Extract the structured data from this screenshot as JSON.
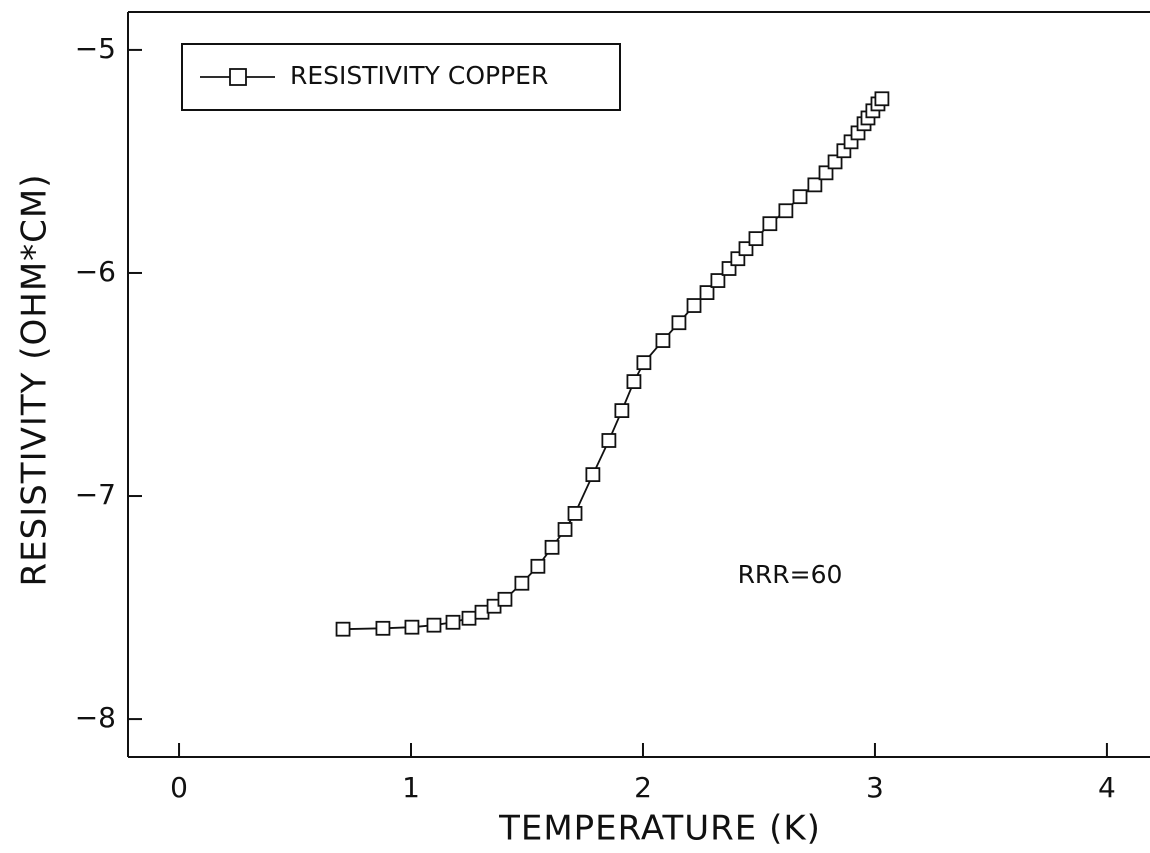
{
  "chart_data": {
    "type": "line",
    "xlabel": "TEMPERATURE  (K)",
    "ylabel": "RESISTIVITY  (OHM*CM)",
    "annotation": "RRR=60",
    "xlim": [
      -0.22,
      4.19
    ],
    "ylim": [
      -8.17,
      -4.83
    ],
    "xticks": [
      0,
      1,
      2,
      3,
      4
    ],
    "yticks": [
      {
        "value": -5,
        "label": "−5"
      },
      {
        "value": -6,
        "label": "−6"
      },
      {
        "value": -7,
        "label": "−7"
      },
      {
        "value": -8,
        "label": "−8"
      }
    ],
    "series": [
      {
        "name": "RESISTIVITY COPPER",
        "color": "#111111",
        "marker": "square",
        "x": [
          0.707,
          0.879,
          1.004,
          1.099,
          1.181,
          1.25,
          1.306,
          1.358,
          1.405,
          1.478,
          1.547,
          1.608,
          1.664,
          1.707,
          1.784,
          1.853,
          1.909,
          1.961,
          2.004,
          2.086,
          2.155,
          2.22,
          2.276,
          2.323,
          2.371,
          2.409,
          2.444,
          2.487,
          2.547,
          2.616,
          2.677,
          2.741,
          2.789,
          2.828,
          2.866,
          2.897,
          2.927,
          2.953,
          2.97,
          2.991,
          3.013,
          3.03
        ],
        "values": [
          -7.597,
          -7.593,
          -7.588,
          -7.579,
          -7.566,
          -7.548,
          -7.521,
          -7.494,
          -7.463,
          -7.391,
          -7.315,
          -7.23,
          -7.15,
          -7.078,
          -6.904,
          -6.751,
          -6.617,
          -6.487,
          -6.402,
          -6.303,
          -6.223,
          -6.146,
          -6.088,
          -6.034,
          -5.98,
          -5.936,
          -5.891,
          -5.846,
          -5.779,
          -5.721,
          -5.658,
          -5.605,
          -5.551,
          -5.502,
          -5.452,
          -5.412,
          -5.372,
          -5.331,
          -5.305,
          -5.273,
          -5.242,
          -5.219
        ]
      }
    ]
  }
}
